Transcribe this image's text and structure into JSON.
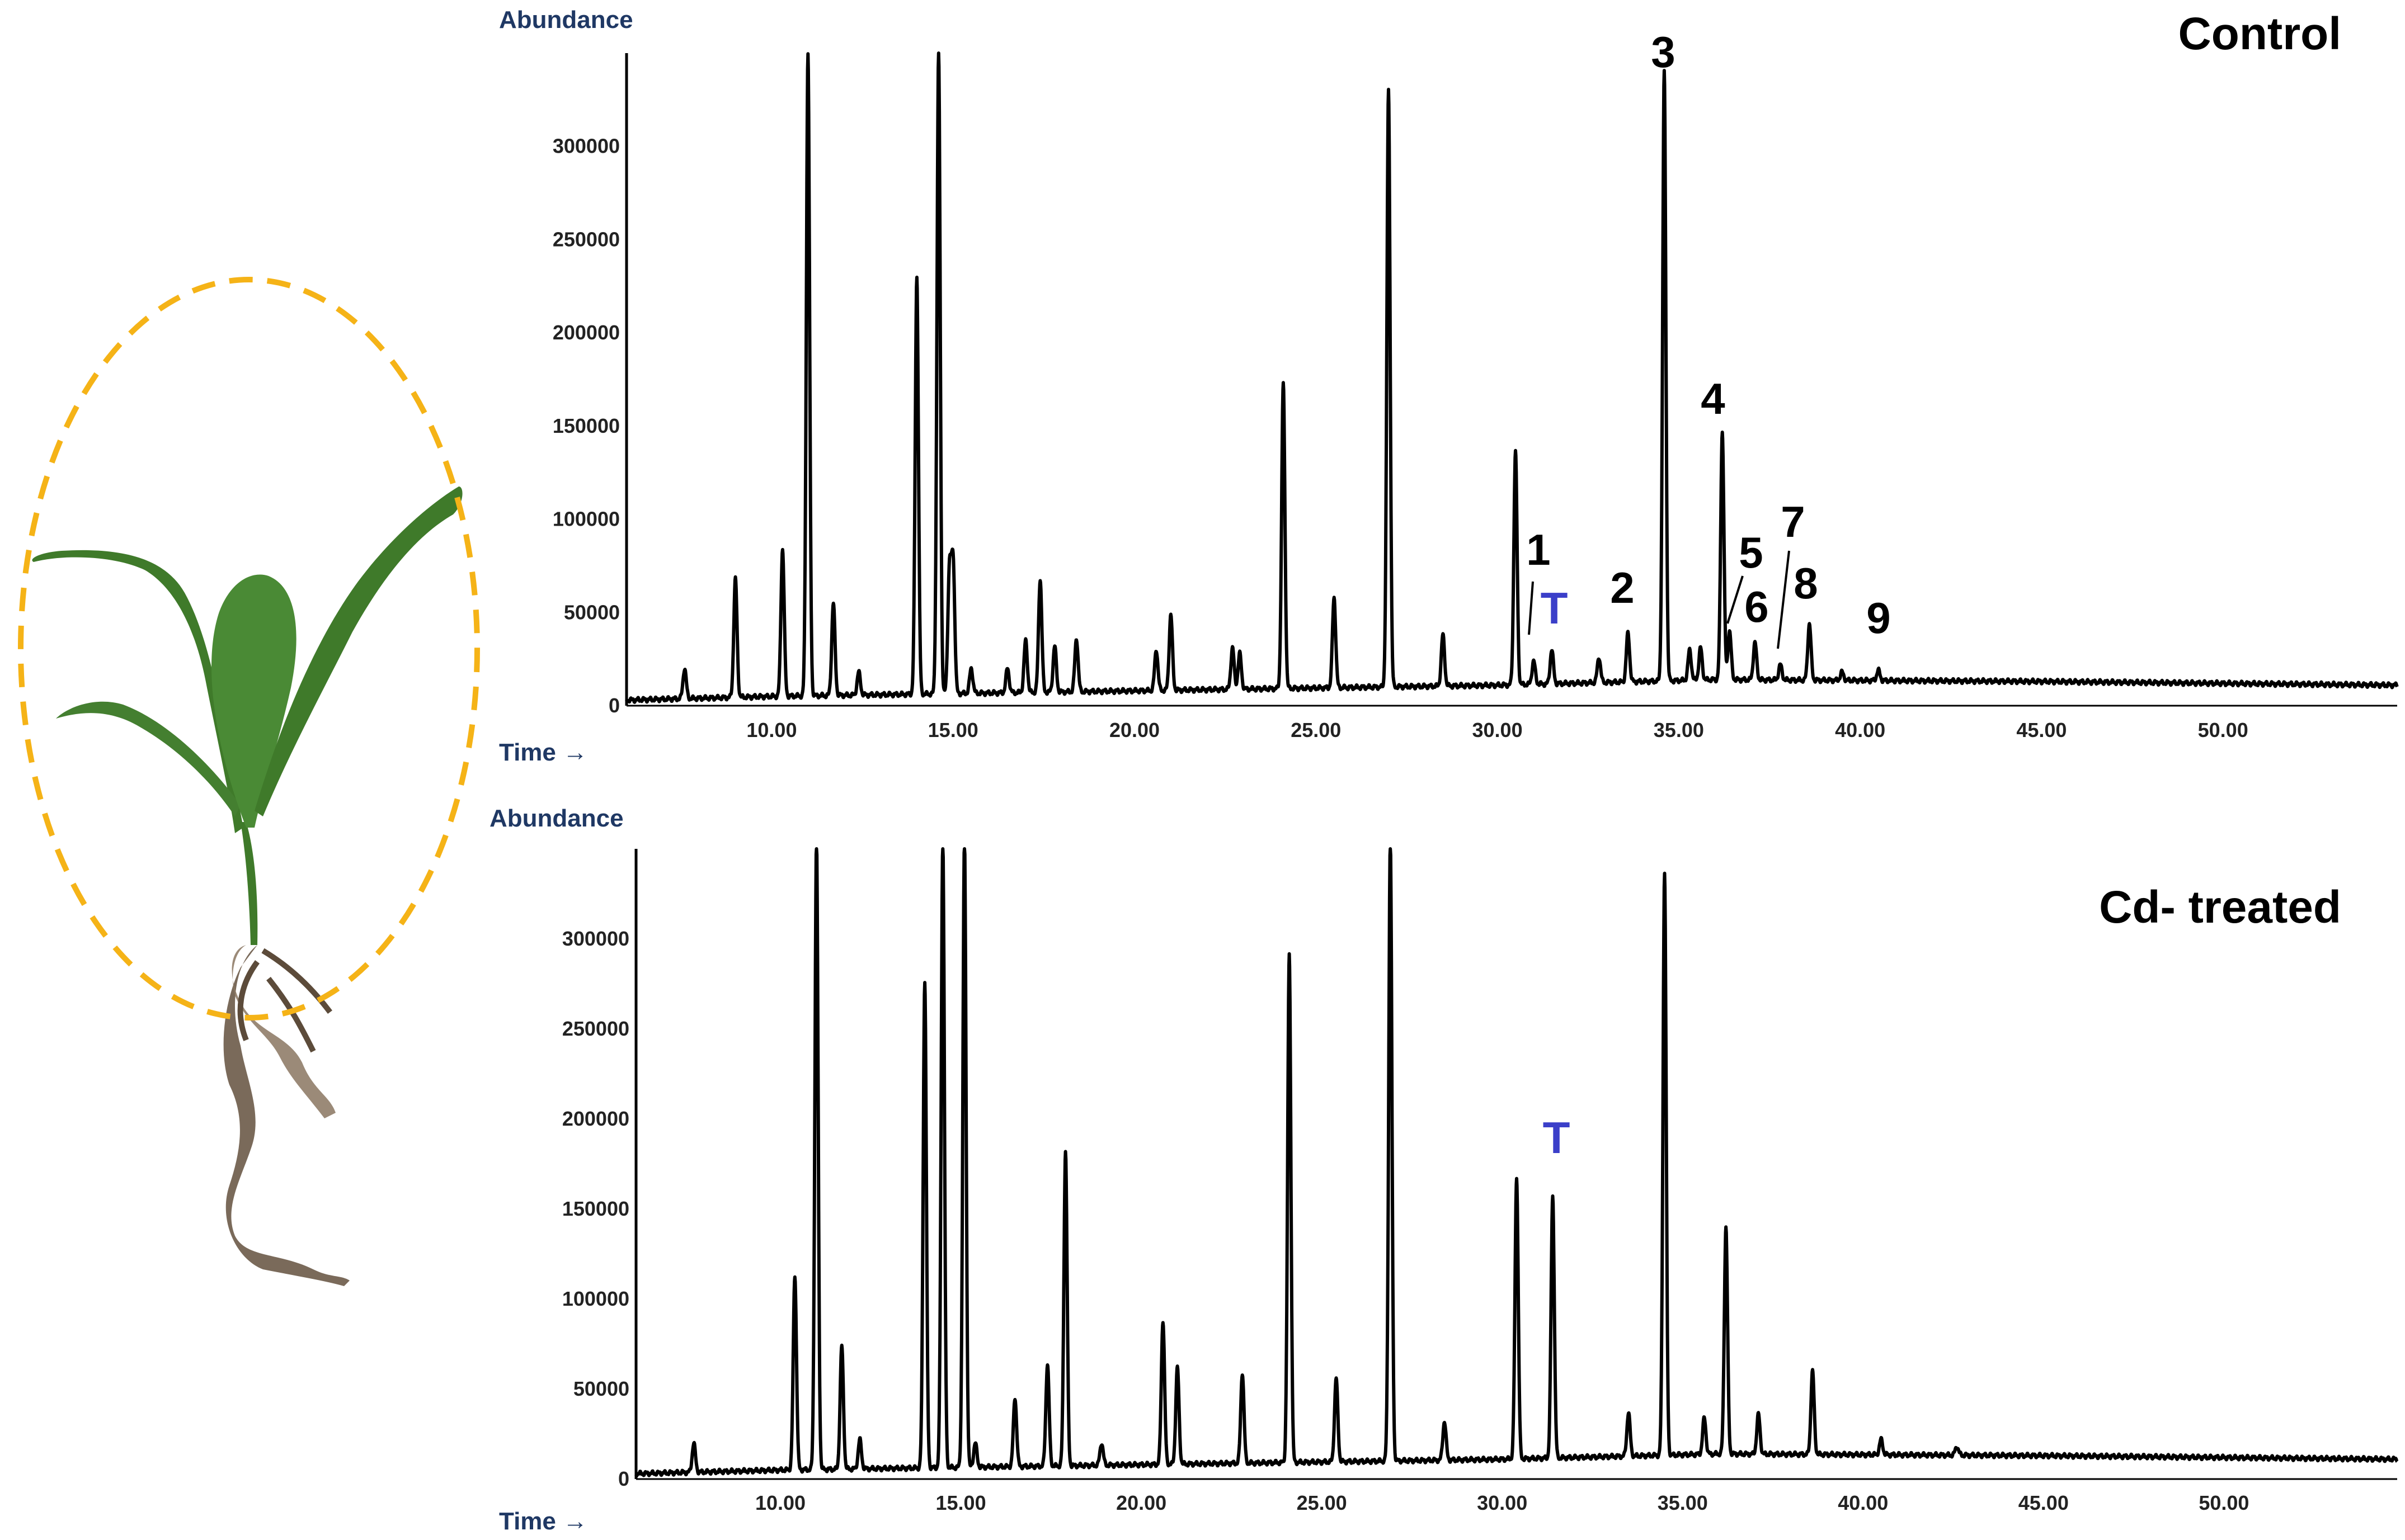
{
  "accent_colors": {
    "trace": "#000000",
    "axis_title": "#1f3864",
    "internal_standard": "#3b3fc9",
    "ellipse": "#f5b317",
    "leaf": "#3f7a2a",
    "root": "#6b5a48"
  },
  "illustration": {
    "name": "maize-seedling",
    "shoot_highlight": "dashed-ellipse"
  },
  "chart_data": [
    {
      "type": "line",
      "title": "Control",
      "xlabel": "Time →",
      "ylabel": "Abundance",
      "xlim": [
        6.0,
        54.8
      ],
      "ylim": [
        0,
        350000
      ],
      "x_ticks": [
        "10.00",
        "15.00",
        "20.00",
        "25.00",
        "30.00",
        "35.00",
        "40.00",
        "45.00",
        "50.00"
      ],
      "x_tick_values": [
        10,
        15,
        20,
        25,
        30,
        35,
        40,
        45,
        50
      ],
      "y_ticks": [
        "0",
        "50000",
        "100000",
        "150000",
        "200000",
        "250000",
        "300000"
      ],
      "y_tick_values": [
        0,
        50000,
        100000,
        150000,
        200000,
        250000,
        300000
      ],
      "baseline": [
        [
          6.0,
          3000
        ],
        [
          10.0,
          5000
        ],
        [
          20.0,
          8000
        ],
        [
          30.0,
          11000
        ],
        [
          36.0,
          14000
        ],
        [
          45.0,
          13000
        ],
        [
          54.8,
          11000
        ]
      ],
      "peaks": [
        {
          "rt": 7.6,
          "abundance": 20000
        },
        {
          "rt": 9.0,
          "abundance": 68000
        },
        {
          "rt": 10.3,
          "abundance": 84000
        },
        {
          "rt": 11.0,
          "abundance": 350000
        },
        {
          "rt": 11.7,
          "abundance": 55000
        },
        {
          "rt": 12.4,
          "abundance": 18000
        },
        {
          "rt": 14.0,
          "abundance": 230000
        },
        {
          "rt": 14.6,
          "abundance": 350000
        },
        {
          "rt": 14.9,
          "abundance": 73000
        },
        {
          "rt": 15.0,
          "abundance": 77000
        },
        {
          "rt": 15.5,
          "abundance": 20000
        },
        {
          "rt": 16.5,
          "abundance": 20000
        },
        {
          "rt": 17.0,
          "abundance": 35000
        },
        {
          "rt": 17.4,
          "abundance": 68000
        },
        {
          "rt": 17.8,
          "abundance": 32000
        },
        {
          "rt": 18.4,
          "abundance": 36000
        },
        {
          "rt": 20.6,
          "abundance": 30000
        },
        {
          "rt": 21.0,
          "abundance": 49000
        },
        {
          "rt": 22.7,
          "abundance": 31000
        },
        {
          "rt": 22.9,
          "abundance": 28000
        },
        {
          "rt": 24.1,
          "abundance": 173000
        },
        {
          "rt": 25.5,
          "abundance": 58000
        },
        {
          "rt": 27.0,
          "abundance": 330000
        },
        {
          "rt": 28.5,
          "abundance": 38000
        },
        {
          "rt": 30.5,
          "abundance": 136000
        },
        {
          "rt": 31.0,
          "abundance": 24000
        },
        {
          "rt": 31.5,
          "abundance": 30000
        },
        {
          "rt": 32.8,
          "abundance": 26000
        },
        {
          "rt": 33.6,
          "abundance": 39000
        },
        {
          "rt": 34.6,
          "abundance": 340000
        },
        {
          "rt": 35.3,
          "abundance": 30000
        },
        {
          "rt": 35.6,
          "abundance": 31000
        },
        {
          "rt": 36.2,
          "abundance": 147000
        },
        {
          "rt": 36.4,
          "abundance": 40000
        },
        {
          "rt": 37.1,
          "abundance": 34000
        },
        {
          "rt": 37.8,
          "abundance": 22000
        },
        {
          "rt": 38.6,
          "abundance": 44000
        },
        {
          "rt": 39.5,
          "abundance": 18000
        },
        {
          "rt": 40.5,
          "abundance": 19000
        }
      ],
      "annotations": [
        {
          "text": "1",
          "rt": 31.0,
          "abundance": 70000
        },
        {
          "text": "T",
          "rt": 31.6,
          "abundance": 40000
        },
        {
          "text": "2",
          "rt": 33.5,
          "abundance": 46000
        },
        {
          "text": "3",
          "rt": 34.6,
          "abundance": 344000
        },
        {
          "text": "4",
          "rt": 36.1,
          "abundance": 152000
        },
        {
          "text": "5",
          "rt": 37.0,
          "abundance": 70000
        },
        {
          "text": "6",
          "rt": 37.1,
          "abundance": 38000
        },
        {
          "text": "7",
          "rt": 38.0,
          "abundance": 82000
        },
        {
          "text": "8",
          "rt": 38.5,
          "abundance": 48000
        },
        {
          "text": "9",
          "rt": 40.5,
          "abundance": 30000
        }
      ]
    },
    {
      "type": "line",
      "title": "Cd- treated",
      "xlabel": "Time →",
      "ylabel": "Abundance",
      "xlim": [
        6.0,
        54.8
      ],
      "ylim": [
        0,
        350000
      ],
      "x_ticks": [
        "10.00",
        "15.00",
        "20.00",
        "25.00",
        "30.00",
        "35.00",
        "40.00",
        "45.00",
        "50.00"
      ],
      "x_tick_values": [
        10,
        15,
        20,
        25,
        30,
        35,
        40,
        45,
        50
      ],
      "y_ticks": [
        "0",
        "50000",
        "100000",
        "150000",
        "200000",
        "250000",
        "300000"
      ],
      "y_tick_values": [
        0,
        50000,
        100000,
        150000,
        200000,
        250000,
        300000
      ],
      "baseline": [
        [
          6.0,
          3000
        ],
        [
          10.0,
          5000
        ],
        [
          20.0,
          8000
        ],
        [
          30.0,
          11000
        ],
        [
          36.0,
          14000
        ],
        [
          45.0,
          13000
        ],
        [
          54.8,
          11000
        ]
      ],
      "peaks": [
        {
          "rt": 7.6,
          "abundance": 20000
        },
        {
          "rt": 10.4,
          "abundance": 113000
        },
        {
          "rt": 11.0,
          "abundance": 355000
        },
        {
          "rt": 11.7,
          "abundance": 74000
        },
        {
          "rt": 12.2,
          "abundance": 22000
        },
        {
          "rt": 14.0,
          "abundance": 276000
        },
        {
          "rt": 14.5,
          "abundance": 355000
        },
        {
          "rt": 15.1,
          "abundance": 355000
        },
        {
          "rt": 15.4,
          "abundance": 20000
        },
        {
          "rt": 16.5,
          "abundance": 45000
        },
        {
          "rt": 17.4,
          "abundance": 64000
        },
        {
          "rt": 17.9,
          "abundance": 182000
        },
        {
          "rt": 18.9,
          "abundance": 20000
        },
        {
          "rt": 20.6,
          "abundance": 88000
        },
        {
          "rt": 21.0,
          "abundance": 62000
        },
        {
          "rt": 22.8,
          "abundance": 59000
        },
        {
          "rt": 24.1,
          "abundance": 292000
        },
        {
          "rt": 25.4,
          "abundance": 56000
        },
        {
          "rt": 26.9,
          "abundance": 355000
        },
        {
          "rt": 28.4,
          "abundance": 32000
        },
        {
          "rt": 30.4,
          "abundance": 168000
        },
        {
          "rt": 31.4,
          "abundance": 157000
        },
        {
          "rt": 33.5,
          "abundance": 37000
        },
        {
          "rt": 34.5,
          "abundance": 337000
        },
        {
          "rt": 35.6,
          "abundance": 34000
        },
        {
          "rt": 36.2,
          "abundance": 140000
        },
        {
          "rt": 37.1,
          "abundance": 36000
        },
        {
          "rt": 38.6,
          "abundance": 60000
        },
        {
          "rt": 40.5,
          "abundance": 22000
        },
        {
          "rt": 42.6,
          "abundance": 18000
        }
      ],
      "annotations": [
        {
          "text": "T",
          "rt": 31.4,
          "abundance": 180000
        }
      ]
    }
  ]
}
